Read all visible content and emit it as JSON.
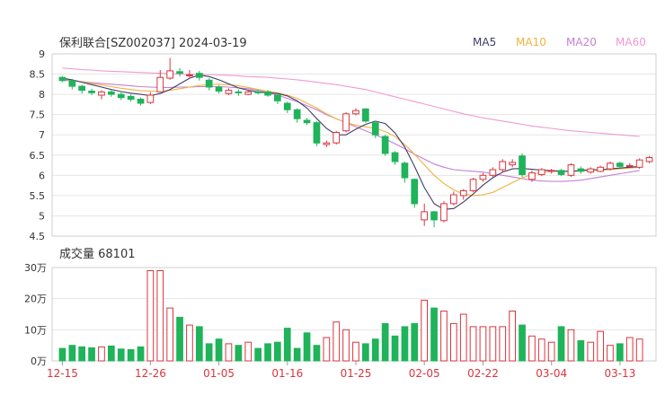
{
  "chart_data": {
    "type": "candlestick",
    "title": "保利联合[SZ002037] 2024-03-19",
    "legend": [
      {
        "label": "MA5",
        "color": "#3d3d6b"
      },
      {
        "label": "MA10",
        "color": "#f0b240"
      },
      {
        "label": "MA20",
        "color": "#c77fd6"
      },
      {
        "label": "MA60",
        "color": "#f09ad2"
      }
    ],
    "price_axis": {
      "min": 4.5,
      "max": 9,
      "ticks": [
        "9",
        "8.5",
        "8",
        "7.5",
        "7",
        "6.5",
        "6",
        "5.5",
        "5",
        "4.5"
      ]
    },
    "volume_label": "成交量 68101",
    "volume_axis": {
      "max": 30,
      "ticks": [
        "30万",
        "20万",
        "10万",
        "0万"
      ]
    },
    "dates": [
      "12-15",
      "12-26",
      "01-05",
      "01-16",
      "01-25",
      "02-05",
      "02-22",
      "03-04",
      "03-13"
    ],
    "date_index": [
      0,
      9,
      16,
      23,
      30,
      37,
      43,
      50,
      57
    ],
    "candles": [
      [
        8.42,
        8.34,
        8.45,
        8.3
      ],
      [
        8.34,
        8.2,
        8.38,
        8.12
      ],
      [
        8.2,
        8.1,
        8.24,
        8.02
      ],
      [
        8.08,
        8.04,
        8.14,
        7.98
      ],
      [
        7.98,
        8.06,
        8.1,
        7.88
      ],
      [
        8.06,
        8.0,
        8.12,
        7.94
      ],
      [
        8.0,
        7.92,
        8.05,
        7.86
      ],
      [
        7.95,
        7.88,
        8.0,
        7.82
      ],
      [
        7.88,
        7.78,
        7.92,
        7.72
      ],
      [
        7.8,
        7.98,
        8.05,
        7.76
      ],
      [
        8.06,
        8.42,
        8.6,
        8.05
      ],
      [
        8.4,
        8.58,
        8.9,
        8.36
      ],
      [
        8.56,
        8.52,
        8.65,
        8.44
      ],
      [
        8.46,
        8.48,
        8.6,
        8.4
      ],
      [
        8.52,
        8.42,
        8.58,
        8.34
      ],
      [
        8.35,
        8.18,
        8.4,
        8.1
      ],
      [
        8.18,
        8.08,
        8.22,
        8.02
      ],
      [
        8.02,
        8.1,
        8.15,
        7.98
      ],
      [
        8.06,
        8.04,
        8.12,
        7.96
      ],
      [
        8.0,
        8.06,
        8.1,
        7.98
      ],
      [
        8.06,
        8.04,
        8.12,
        8.0
      ],
      [
        8.06,
        7.98,
        8.1,
        7.94
      ],
      [
        7.98,
        7.84,
        8.0,
        7.76
      ],
      [
        7.78,
        7.62,
        7.82,
        7.54
      ],
      [
        7.62,
        7.4,
        7.66,
        7.3
      ],
      [
        7.36,
        7.3,
        7.42,
        7.24
      ],
      [
        7.3,
        6.8,
        7.34,
        6.72
      ],
      [
        6.76,
        6.8,
        6.86,
        6.7
      ],
      [
        6.8,
        7.06,
        7.1,
        6.76
      ],
      [
        7.1,
        7.52,
        7.56,
        7.06
      ],
      [
        7.52,
        7.6,
        7.66,
        7.48
      ],
      [
        7.64,
        7.34,
        7.66,
        7.3
      ],
      [
        7.3,
        7.0,
        7.34,
        6.92
      ],
      [
        6.96,
        6.54,
        7.0,
        6.48
      ],
      [
        6.56,
        6.34,
        6.6,
        6.26
      ],
      [
        6.3,
        5.94,
        6.34,
        5.82
      ],
      [
        5.9,
        5.3,
        5.92,
        5.2
      ],
      [
        4.9,
        5.1,
        5.3,
        4.75
      ],
      [
        5.1,
        4.9,
        5.12,
        4.72
      ],
      [
        4.88,
        5.3,
        5.36,
        4.84
      ],
      [
        5.3,
        5.52,
        5.6,
        5.26
      ],
      [
        5.5,
        5.62,
        5.66,
        5.4
      ],
      [
        5.62,
        5.9,
        5.94,
        5.58
      ],
      [
        5.9,
        6.0,
        6.06,
        5.84
      ],
      [
        6.0,
        6.14,
        6.2,
        5.96
      ],
      [
        6.14,
        6.34,
        6.4,
        6.08
      ],
      [
        6.26,
        6.32,
        6.4,
        6.2
      ],
      [
        6.48,
        6.02,
        6.54,
        5.96
      ],
      [
        5.9,
        6.06,
        6.12,
        5.84
      ],
      [
        6.02,
        6.14,
        6.18,
        5.98
      ],
      [
        6.1,
        6.12,
        6.16,
        6.04
      ],
      [
        6.12,
        6.02,
        6.16,
        5.98
      ],
      [
        6.0,
        6.26,
        6.3,
        5.96
      ],
      [
        6.16,
        6.1,
        6.22,
        6.04
      ],
      [
        6.08,
        6.16,
        6.2,
        6.04
      ],
      [
        6.1,
        6.2,
        6.24,
        6.08
      ],
      [
        6.16,
        6.3,
        6.34,
        6.12
      ],
      [
        6.3,
        6.22,
        6.34,
        6.18
      ],
      [
        6.24,
        6.24,
        6.3,
        6.2
      ],
      [
        6.2,
        6.38,
        6.42,
        6.16
      ],
      [
        6.34,
        6.44,
        6.48,
        6.3
      ]
    ],
    "volume": [
      4.0,
      5.0,
      4.5,
      4.2,
      4.5,
      4.8,
      3.8,
      3.6,
      4.5,
      29.0,
      29.0,
      17.0,
      14.0,
      11.5,
      11.0,
      5.5,
      7.0,
      5.5,
      5.0,
      6.0,
      4.0,
      5.5,
      6.0,
      10.5,
      4.0,
      9.0,
      5.0,
      7.5,
      12.5,
      10.0,
      6.0,
      5.5,
      7.0,
      12.0,
      8.0,
      11.0,
      12.0,
      19.5,
      17.0,
      16.0,
      12.0,
      15.0,
      11.0,
      11.0,
      11.0,
      11.0,
      16.0,
      11.5,
      8.0,
      7.0,
      6.0,
      11.0,
      10.0,
      6.5,
      6.0,
      9.5,
      5.0,
      5.5,
      7.5,
      7.0
    ],
    "ma5": [
      8.4,
      8.36,
      8.3,
      8.24,
      8.18,
      8.12,
      8.07,
      8.03,
      8.0,
      7.97,
      8.02,
      8.12,
      8.26,
      8.4,
      8.48,
      8.44,
      8.36,
      8.26,
      8.16,
      8.1,
      8.06,
      8.04,
      8.02,
      7.96,
      7.84,
      7.66,
      7.4,
      7.16,
      7.0,
      7.0,
      7.14,
      7.26,
      7.34,
      7.28,
      7.05,
      6.7,
      6.22,
      5.7,
      5.3,
      5.16,
      5.18,
      5.34,
      5.54,
      5.76,
      5.94,
      6.08,
      6.16,
      6.17,
      6.15,
      6.13,
      6.12,
      6.1,
      6.1,
      6.12,
      6.14,
      6.14,
      6.16,
      6.18,
      6.2,
      6.22
    ],
    "ma10": [
      8.38,
      8.35,
      8.31,
      8.27,
      8.23,
      8.19,
      8.15,
      8.12,
      8.09,
      8.08,
      8.08,
      8.1,
      8.14,
      8.18,
      8.22,
      8.24,
      8.25,
      8.24,
      8.21,
      8.17,
      8.12,
      8.08,
      8.04,
      7.98,
      7.9,
      7.78,
      7.66,
      7.52,
      7.4,
      7.3,
      7.24,
      7.2,
      7.16,
      7.08,
      6.96,
      6.76,
      6.52,
      6.26,
      6.0,
      5.8,
      5.64,
      5.54,
      5.5,
      5.52,
      5.58,
      5.7,
      5.82,
      5.94,
      6.02,
      6.08,
      6.1,
      6.1,
      6.1,
      6.11,
      6.12,
      6.13,
      6.14,
      6.16,
      6.18,
      6.2
    ],
    "ma20": [
      8.35,
      8.33,
      8.31,
      8.29,
      8.27,
      8.25,
      8.23,
      8.21,
      8.19,
      8.18,
      8.17,
      8.17,
      8.18,
      8.18,
      8.19,
      8.19,
      8.19,
      8.18,
      8.16,
      8.14,
      8.1,
      8.04,
      7.98,
      7.9,
      7.82,
      7.72,
      7.62,
      7.5,
      7.4,
      7.3,
      7.2,
      7.1,
      7.0,
      6.9,
      6.78,
      6.66,
      6.52,
      6.4,
      6.28,
      6.2,
      6.14,
      6.12,
      6.1,
      6.08,
      6.04,
      6.0,
      5.96,
      5.92,
      5.88,
      5.86,
      5.85,
      5.85,
      5.86,
      5.88,
      5.92,
      5.96,
      6.0,
      6.04,
      6.08,
      6.12
    ],
    "ma60": [
      8.65,
      8.63,
      8.61,
      8.6,
      8.58,
      8.57,
      8.56,
      8.55,
      8.54,
      8.53,
      8.52,
      8.51,
      8.5,
      8.5,
      8.49,
      8.49,
      8.48,
      8.47,
      8.46,
      8.44,
      8.43,
      8.42,
      8.4,
      8.38,
      8.36,
      8.33,
      8.3,
      8.27,
      8.24,
      8.2,
      8.16,
      8.12,
      8.06,
      8.0,
      7.94,
      7.88,
      7.82,
      7.76,
      7.7,
      7.64,
      7.58,
      7.52,
      7.47,
      7.42,
      7.38,
      7.34,
      7.3,
      7.26,
      7.22,
      7.19,
      7.16,
      7.13,
      7.1,
      7.08,
      7.06,
      7.04,
      7.02,
      7.0,
      6.98,
      6.96
    ],
    "up_color": "#d9363e",
    "down_color": "#1fb35a",
    "up_fill": "#ffffff"
  }
}
